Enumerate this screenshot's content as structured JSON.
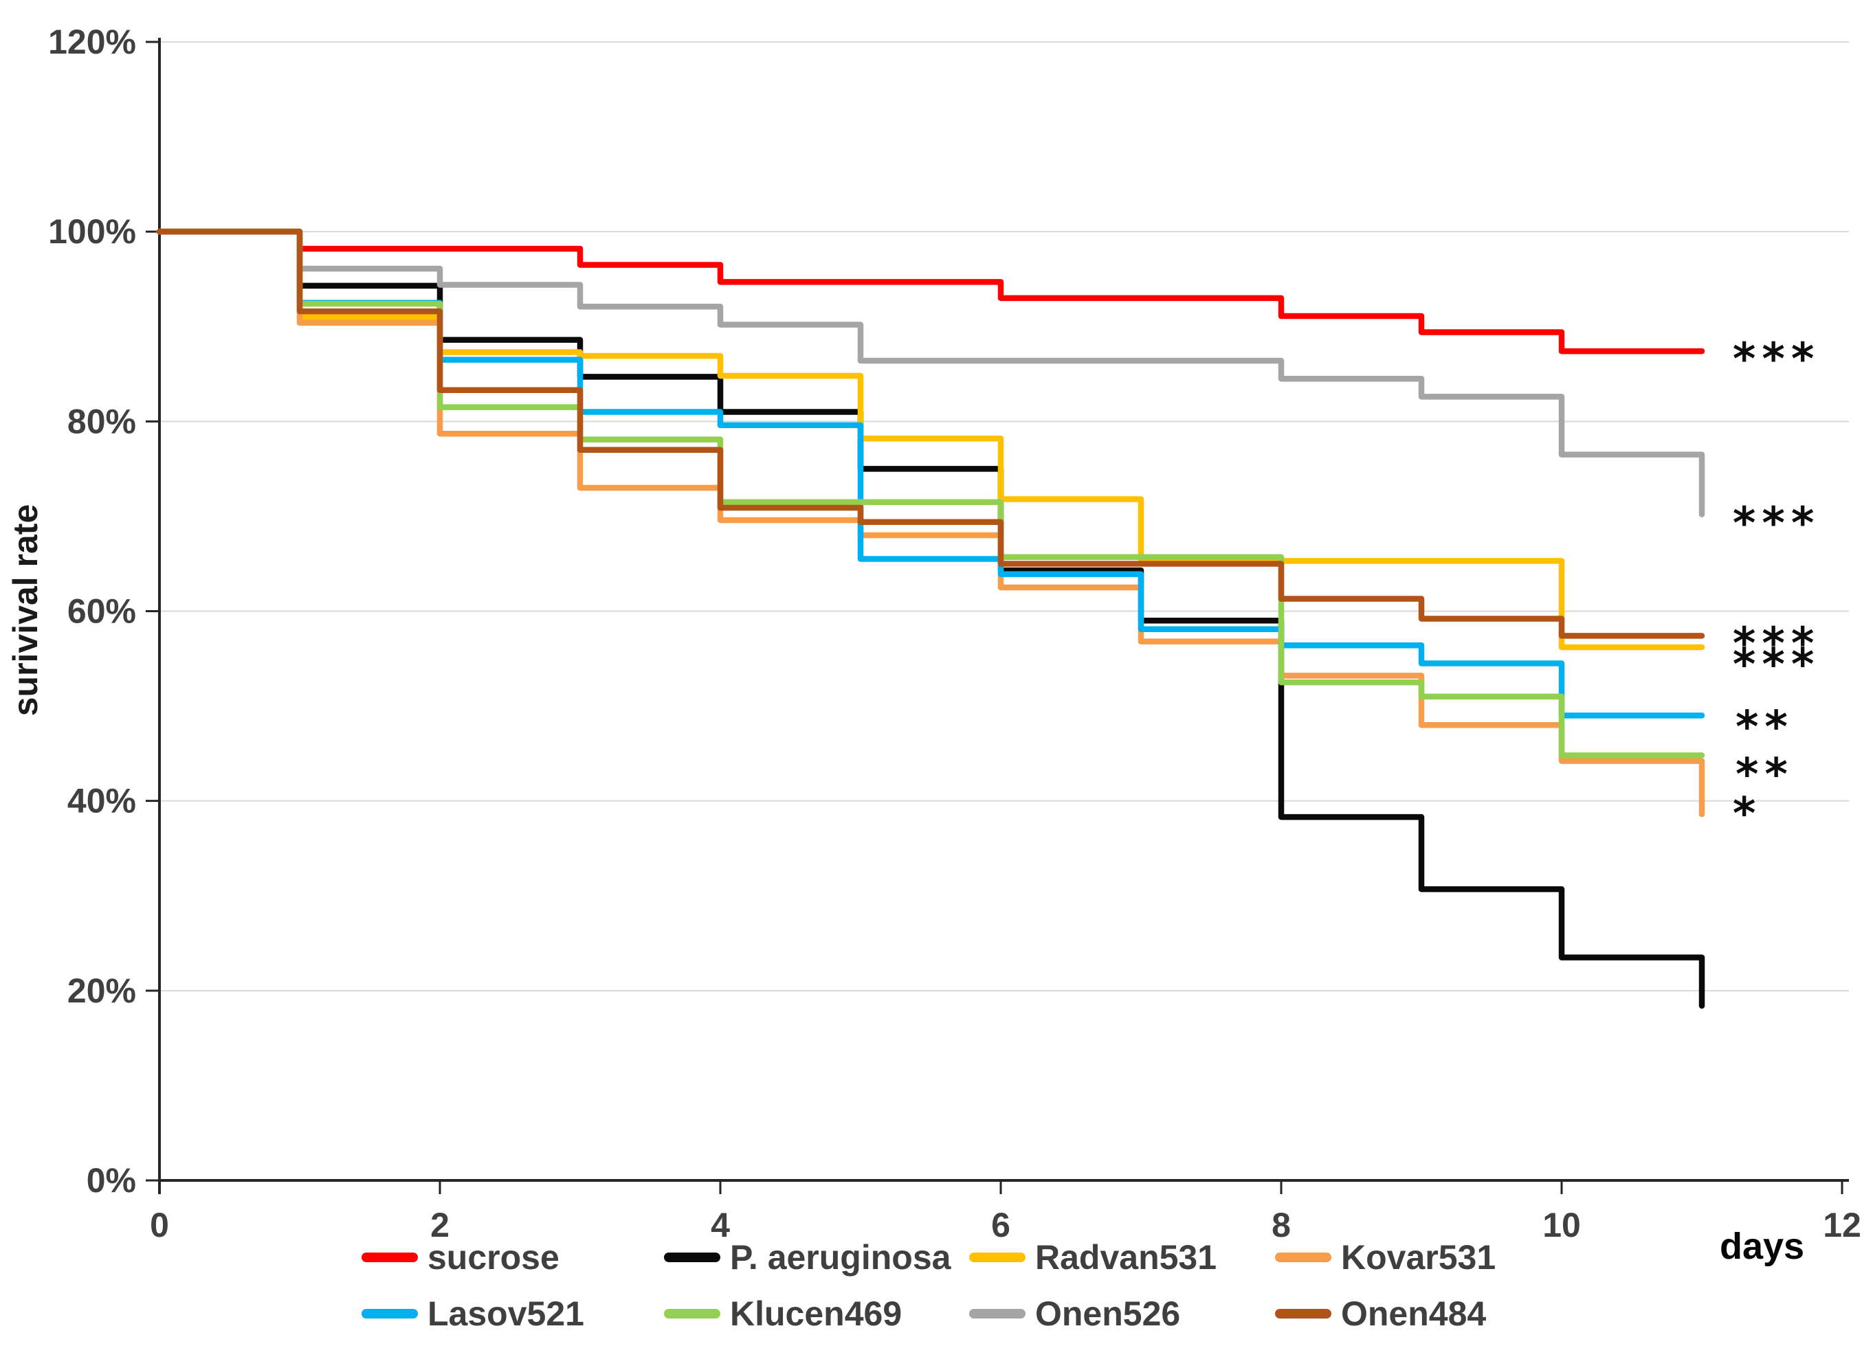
{
  "chart_data": {
    "type": "line",
    "subtype": "step-survival-curve",
    "title": "",
    "xlabel": "days",
    "ylabel": "surivival rate",
    "xlim": [
      0,
      12
    ],
    "ylim": [
      0,
      120
    ],
    "grid": "horizontal",
    "legend_position": "bottom",
    "axis_color": "#262626",
    "grid_color": "#d9d9d9",
    "x_ticks": [
      {
        "day": 0,
        "label": "0"
      },
      {
        "day": 2,
        "label": "2"
      },
      {
        "day": 4,
        "label": "4"
      },
      {
        "day": 6,
        "label": "6"
      },
      {
        "day": 8,
        "label": "8"
      },
      {
        "day": 10,
        "label": "10"
      },
      {
        "day": 12,
        "label": "12"
      }
    ],
    "y_ticks": [
      {
        "pct": 0,
        "label": "0%"
      },
      {
        "pct": 20,
        "label": "20%"
      },
      {
        "pct": 40,
        "label": "40%"
      },
      {
        "pct": 60,
        "label": "60%"
      },
      {
        "pct": 80,
        "label": "80%"
      },
      {
        "pct": 100,
        "label": "100%"
      },
      {
        "pct": 120,
        "label": "120%"
      }
    ],
    "step_days": [
      0,
      1,
      2,
      3,
      4,
      5,
      6,
      7,
      8,
      9,
      10
    ],
    "end_day": 11,
    "series": [
      {
        "name": "sucrose",
        "color": "#fe0000",
        "values": [
          100,
          98.2,
          98.2,
          96.5,
          94.7,
          94.7,
          93.0,
          93.0,
          91.1,
          89.4,
          87.4
        ],
        "end_value": 87.4,
        "significance": "***"
      },
      {
        "name": "P. aeruginosa",
        "color": "#0a0a0a",
        "values": [
          100,
          94.3,
          88.6,
          84.7,
          81.0,
          75.0,
          64.3,
          59.0,
          38.3,
          30.7,
          23.5
        ],
        "end_value": 18.4,
        "significance": ""
      },
      {
        "name": "Radvan531",
        "color": "#ffc000",
        "values": [
          100,
          91.0,
          87.3,
          86.9,
          84.8,
          78.2,
          71.8,
          65.4,
          65.3,
          65.3,
          56.2
        ],
        "end_value": 56.2,
        "significance": "***"
      },
      {
        "name": "Kovar531",
        "color": "#f79c49",
        "values": [
          100,
          90.4,
          78.7,
          73.0,
          69.6,
          68.0,
          62.5,
          56.8,
          53.2,
          48.0,
          44.2
        ],
        "end_value": 38.6,
        "significance": "*"
      },
      {
        "name": "Lasov521",
        "color": "#00b0f0",
        "values": [
          100,
          92.5,
          86.5,
          81.0,
          79.6,
          65.5,
          63.9,
          58.1,
          56.4,
          54.5,
          49.0
        ],
        "end_value": 49.0,
        "significance": "**"
      },
      {
        "name": "Klucen469",
        "color": "#92d050",
        "values": [
          100,
          92.4,
          81.5,
          78.1,
          71.5,
          71.5,
          65.7,
          65.7,
          52.5,
          51.0,
          44.8
        ],
        "end_value": 44.8,
        "significance": "**"
      },
      {
        "name": "Onen526",
        "color": "#a5a5a5",
        "values": [
          100,
          96.1,
          94.4,
          92.1,
          90.2,
          86.4,
          86.4,
          86.4,
          84.5,
          82.6,
          76.5
        ],
        "end_value": 70.2,
        "significance": "***"
      },
      {
        "name": "Onen484",
        "color": "#b25417",
        "values": [
          100,
          91.6,
          83.3,
          77.0,
          70.9,
          69.4,
          65.0,
          65.0,
          61.3,
          59.2,
          57.4
        ],
        "end_value": 57.4,
        "significance": "***"
      }
    ],
    "annotations": [
      {
        "text": "***",
        "x_day": 11.22,
        "y_pct": 87.6,
        "for_series": "sucrose"
      },
      {
        "text": "***",
        "x_day": 11.22,
        "y_pct": 70.3,
        "for_series": "Onen526"
      },
      {
        "text": "***",
        "x_day": 11.22,
        "y_pct": 57.6,
        "for_series": "Onen484"
      },
      {
        "text": "***",
        "x_day": 11.22,
        "y_pct": 55.4,
        "for_series": "Radvan531"
      },
      {
        "text": "**",
        "x_day": 11.24,
        "y_pct": 48.8,
        "for_series": "Lasov521"
      },
      {
        "text": "**",
        "x_day": 11.24,
        "y_pct": 43.8,
        "for_series": "Klucen469"
      },
      {
        "text": "*",
        "x_day": 11.22,
        "y_pct": 39.7,
        "for_series": "Kovar531"
      }
    ],
    "legend": {
      "rows": [
        [
          "sucrose",
          "P. aeruginosa",
          "Radvan531",
          "Kovar531"
        ],
        [
          "Lasov521",
          "Klucen469",
          "Onen526",
          "Onen484"
        ]
      ]
    }
  }
}
